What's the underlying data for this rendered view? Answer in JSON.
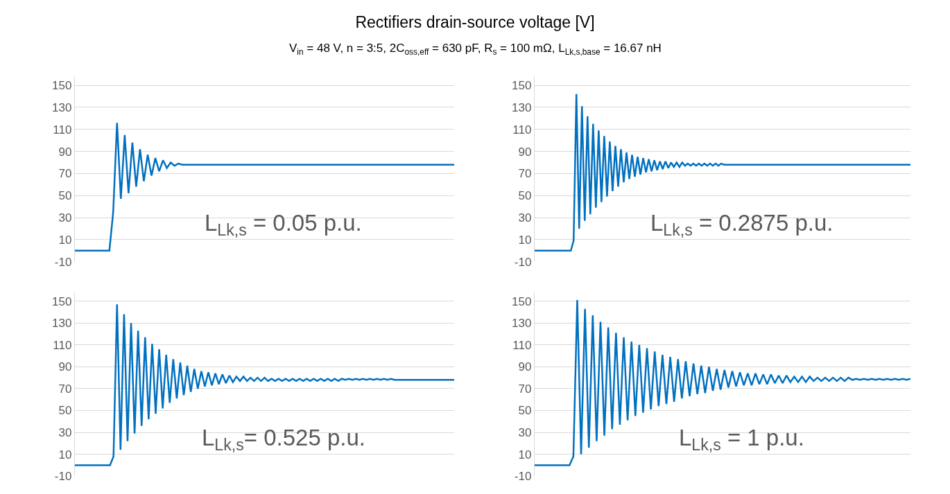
{
  "chart_data": [
    {
      "type": "line",
      "title": "Rectifiers drain-source voltage [V]",
      "subtitle": "V$_{in}$ = 48 V, n = 3:5, 2C$_{oss,eff}$ = 630 pF, R$_{s}$ = 100 mΩ, L$_{Lk,s,base}$ = 16.67 nH",
      "categories": [
        null,
        null,
        null,
        null,
        null,
        null,
        null,
        null,
        null,
        null,
        null,
        null,
        null,
        null,
        null,
        null,
        null,
        null,
        null,
        null,
        null,
        null,
        null,
        null,
        null,
        null,
        null,
        null,
        null,
        null,
        null,
        null,
        null,
        null,
        null,
        null,
        null,
        null,
        null,
        null,
        null,
        null,
        null,
        null,
        null,
        null,
        null,
        null,
        null,
        null,
        null,
        null,
        null,
        null,
        null,
        null,
        null,
        null,
        null,
        null,
        null,
        null,
        null,
        null,
        null,
        null,
        null,
        null,
        null,
        null,
        null,
        null,
        null,
        null,
        null,
        null,
        null,
        null,
        null,
        null,
        null,
        null,
        null,
        null,
        null,
        null,
        null,
        null,
        null,
        null,
        null,
        null,
        null,
        null,
        null,
        null,
        null,
        null,
        null,
        null
      ],
      "series": [
        {
          "color": "#0070c0",
          "values": [
            0,
            0,
            0,
            0,
            0,
            0,
            0,
            0,
            0,
            0,
            35,
            116,
            47,
            105,
            52,
            98,
            58,
            92,
            63,
            87,
            68,
            84,
            72,
            82,
            75,
            80,
            77,
            79,
            78,
            78,
            78,
            78,
            78,
            78,
            78,
            78,
            78,
            78,
            78,
            78,
            78,
            78,
            78,
            78,
            78,
            78,
            78,
            78,
            78,
            78,
            78,
            78,
            78,
            78,
            78,
            78,
            78,
            78,
            78,
            78,
            78,
            78,
            78,
            78,
            78,
            78,
            78,
            78,
            78,
            78,
            78,
            78,
            78,
            78,
            78,
            78,
            78,
            78,
            78,
            78,
            78,
            78,
            78,
            78,
            78,
            78,
            78,
            78,
            78,
            78,
            78,
            78,
            78,
            78,
            78,
            78,
            78,
            78,
            78,
            78
          ]
        }
      ],
      "ylim": [
        -10,
        158
      ],
      "yticks": [
        -10,
        10,
        30,
        50,
        70,
        90,
        110,
        130,
        150
      ],
      "grid": "y",
      "tick_labels": "y",
      "annotations": [
        "L$_{Lk,s}$ = 0.05 p.u."
      ]
    },
    {
      "type": "line",
      "categories": [
        null,
        null,
        null,
        null,
        null,
        null,
        null,
        null,
        null,
        null,
        null,
        null,
        null,
        null,
        null,
        null,
        null,
        null,
        null,
        null,
        null,
        null,
        null,
        null,
        null,
        null,
        null,
        null,
        null,
        null,
        null,
        null,
        null,
        null,
        null,
        null,
        null,
        null,
        null,
        null,
        null,
        null,
        null,
        null,
        null,
        null,
        null,
        null,
        null,
        null,
        null,
        null,
        null,
        null,
        null,
        null,
        null,
        null,
        null,
        null,
        null,
        null,
        null,
        null,
        null,
        null,
        null,
        null,
        null,
        null,
        null,
        null,
        null,
        null,
        null,
        null,
        null,
        null,
        null,
        null,
        null,
        null,
        null,
        null,
        null,
        null,
        null,
        null,
        null,
        null,
        null,
        null,
        null,
        null,
        null,
        null,
        null,
        null,
        null,
        null,
        null,
        null,
        null,
        null,
        null,
        null,
        null,
        null,
        null,
        null,
        null,
        null,
        null,
        null,
        null,
        null,
        null,
        null,
        null,
        null,
        null,
        null,
        null,
        null,
        null,
        null,
        null,
        null,
        null,
        null,
        null,
        null,
        null,
        null,
        null,
        null
      ],
      "series": [
        {
          "color": "#0070c0",
          "values": [
            0,
            0,
            0,
            0,
            0,
            0,
            0,
            0,
            0,
            0,
            0,
            0,
            0,
            0,
            9,
            142,
            20,
            131,
            27,
            122,
            33,
            115,
            39,
            109,
            44,
            104,
            49,
            99,
            54,
            95,
            58,
            92,
            62,
            89,
            65,
            87,
            67,
            85,
            69,
            84,
            71,
            83,
            72,
            82,
            73,
            81,
            74,
            81,
            75,
            80,
            76,
            80,
            76,
            80,
            77,
            79,
            77,
            79,
            77,
            79,
            77,
            79,
            77,
            79,
            77,
            79,
            77,
            79,
            78,
            78,
            78,
            78,
            78,
            78,
            78,
            78,
            78,
            78,
            78,
            78,
            78,
            78,
            78,
            78,
            78,
            78,
            78,
            78,
            78,
            78,
            78,
            78,
            78,
            78,
            78,
            78,
            78,
            78,
            78,
            78,
            78,
            78,
            78,
            78,
            78,
            78,
            78,
            78,
            78,
            78,
            78,
            78,
            78,
            78,
            78,
            78,
            78,
            78,
            78,
            78,
            78,
            78,
            78,
            78,
            78,
            78,
            78,
            78,
            78,
            78,
            78,
            78,
            78,
            78,
            78,
            78
          ]
        }
      ],
      "ylim": [
        -10,
        158
      ],
      "yticks": [
        -10,
        10,
        30,
        50,
        70,
        90,
        110,
        130,
        150
      ],
      "grid": "y",
      "tick_labels": "y",
      "annotations": [
        "L$_{Lk,s}$ = 0.2875 p.u."
      ]
    },
    {
      "type": "line",
      "categories": [
        null,
        null,
        null,
        null,
        null,
        null,
        null,
        null,
        null,
        null,
        null,
        null,
        null,
        null,
        null,
        null,
        null,
        null,
        null,
        null,
        null,
        null,
        null,
        null,
        null,
        null,
        null,
        null,
        null,
        null,
        null,
        null,
        null,
        null,
        null,
        null,
        null,
        null,
        null,
        null,
        null,
        null,
        null,
        null,
        null,
        null,
        null,
        null,
        null,
        null,
        null,
        null,
        null,
        null,
        null,
        null,
        null,
        null,
        null,
        null,
        null,
        null,
        null,
        null,
        null,
        null,
        null,
        null,
        null,
        null,
        null,
        null,
        null,
        null,
        null,
        null,
        null,
        null,
        null,
        null,
        null,
        null,
        null,
        null,
        null,
        null,
        null,
        null,
        null,
        null,
        null,
        null,
        null,
        null,
        null,
        null,
        null,
        null,
        null,
        null,
        null,
        null,
        null,
        null,
        null,
        null,
        null,
        null,
        null
      ],
      "series": [
        {
          "color": "#0070c0",
          "values": [
            0,
            0,
            0,
            0,
            0,
            0,
            0,
            0,
            0,
            0,
            0,
            8,
            147,
            14,
            138,
            22,
            130,
            29,
            123,
            36,
            117,
            42,
            111,
            47,
            106,
            52,
            101,
            57,
            97,
            61,
            94,
            64,
            91,
            67,
            88,
            70,
            86,
            72,
            85,
            73,
            84,
            74,
            83,
            75,
            82,
            76,
            81,
            77,
            81,
            77,
            80,
            77,
            80,
            77,
            80,
            77,
            79,
            77,
            79,
            77,
            79,
            77,
            79,
            77,
            79,
            77,
            79,
            77,
            79,
            77,
            79,
            77,
            79,
            77,
            79,
            77,
            79,
            78,
            79,
            78,
            79,
            78,
            79,
            78,
            79,
            78,
            79,
            78,
            79,
            78,
            79,
            78,
            78,
            78,
            78,
            78,
            78,
            78,
            78,
            78,
            78,
            78,
            78,
            78,
            78,
            78,
            78,
            78,
            78
          ]
        }
      ],
      "ylim": [
        -10,
        158
      ],
      "yticks": [
        -10,
        10,
        30,
        50,
        70,
        90,
        110,
        130,
        150
      ],
      "grid": "y",
      "tick_labels": "y",
      "annotations": [
        "L$_{Lk,s}$= 0.525 p.u."
      ]
    },
    {
      "type": "line",
      "categories": [
        null,
        null,
        null,
        null,
        null,
        null,
        null,
        null,
        null,
        null,
        null,
        null,
        null,
        null,
        null,
        null,
        null,
        null,
        null,
        null,
        null,
        null,
        null,
        null,
        null,
        null,
        null,
        null,
        null,
        null,
        null,
        null,
        null,
        null,
        null,
        null,
        null,
        null,
        null,
        null,
        null,
        null,
        null,
        null,
        null,
        null,
        null,
        null,
        null,
        null,
        null,
        null,
        null,
        null,
        null,
        null,
        null,
        null,
        null,
        null,
        null,
        null,
        null,
        null,
        null,
        null,
        null,
        null,
        null,
        null,
        null,
        null,
        null,
        null,
        null,
        null,
        null,
        null,
        null,
        null,
        null,
        null,
        null,
        null,
        null,
        null,
        null,
        null,
        null,
        null,
        null,
        null,
        null,
        null,
        null,
        null,
        null,
        null
      ],
      "series": [
        {
          "color": "#0070c0",
          "values": [
            0,
            0,
            0,
            0,
            0,
            0,
            0,
            0,
            0,
            0,
            8,
            151,
            10,
            143,
            16,
            137,
            22,
            131,
            27,
            126,
            33,
            121,
            37,
            117,
            41,
            113,
            45,
            110,
            48,
            107,
            51,
            104,
            54,
            101,
            56,
            99,
            58,
            97,
            61,
            95,
            63,
            93,
            65,
            91,
            66,
            90,
            68,
            88,
            69,
            87,
            71,
            86,
            72,
            85,
            73,
            84,
            73,
            84,
            74,
            83,
            74,
            83,
            75,
            82,
            75,
            82,
            76,
            81,
            76,
            81,
            76,
            81,
            77,
            80,
            77,
            80,
            77,
            80,
            77,
            80,
            77,
            80,
            78,
            79,
            78,
            79,
            78,
            79,
            78,
            79,
            78,
            79,
            78,
            79,
            78,
            79,
            78,
            79
          ]
        }
      ],
      "ylim": [
        -10,
        158
      ],
      "yticks": [
        -10,
        10,
        30,
        50,
        70,
        90,
        110,
        130,
        150
      ],
      "grid": "y",
      "tick_labels": "y",
      "annotations": [
        "L$_{Lk,s}$ = 1 p.u."
      ]
    }
  ]
}
